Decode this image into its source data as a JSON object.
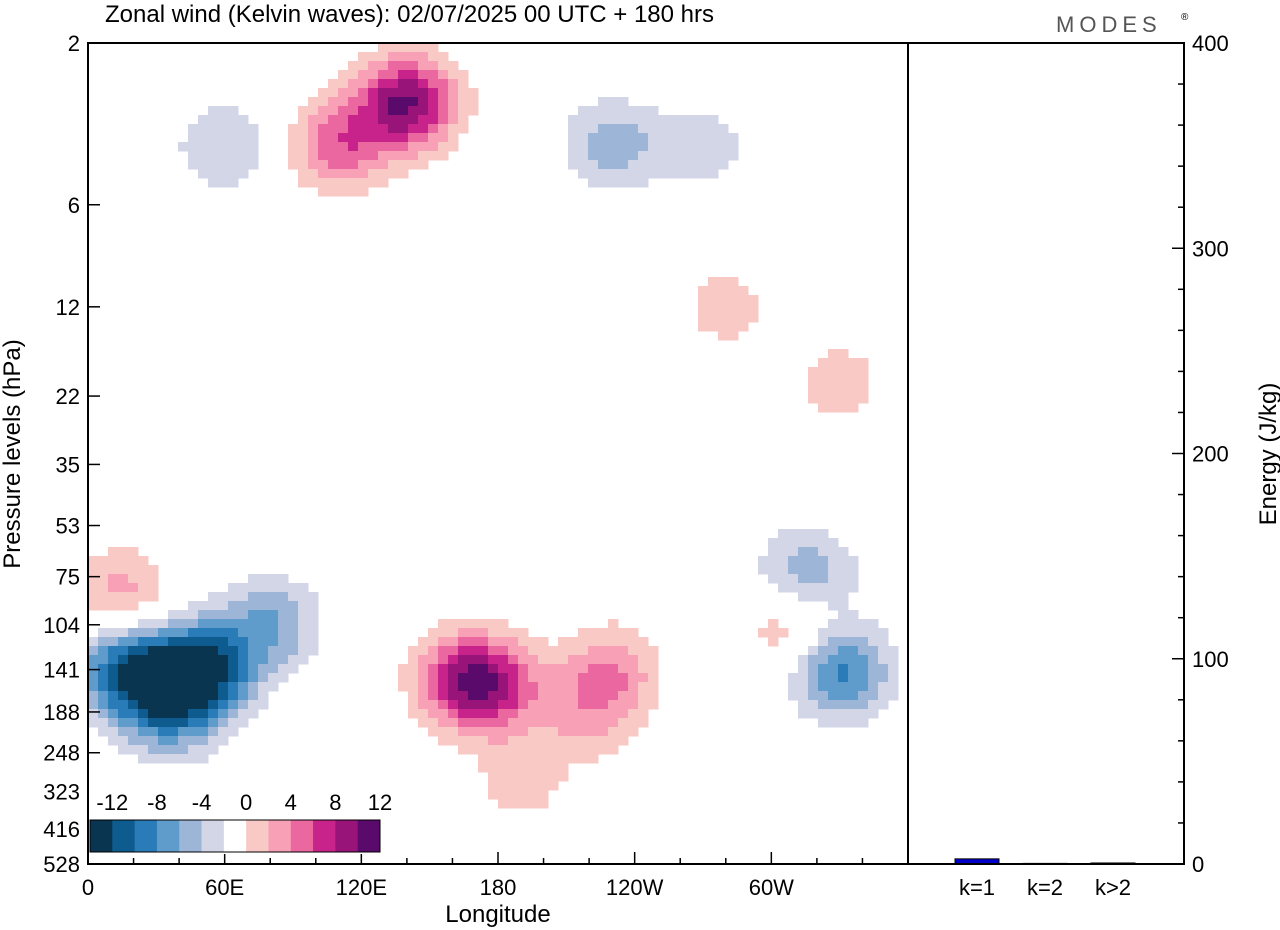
{
  "header": {
    "title": "Zonal wind (Kelvin waves):  02/07/2025  00 UTC  + 180 hrs",
    "logo": "MODES",
    "logo_mark": "®"
  },
  "colors": {
    "levels": [
      -12,
      -10,
      -8,
      -6,
      -4,
      -2,
      2,
      4,
      6,
      8,
      10,
      12
    ],
    "palette": [
      "#0a3550",
      "#0e5c8f",
      "#2a7cb8",
      "#5f9ccb",
      "#9db6d8",
      "#d3d6e7",
      "#ffffff",
      "#f9c9c6",
      "#f8a0b5",
      "#eb67a0",
      "#c8228b",
      "#981478",
      "#5a0a6a"
    ],
    "bar": "#0000cc"
  },
  "chart_data": [
    {
      "type": "heatmap",
      "title": "Zonal wind (Kelvin waves):  02/07/2025  00 UTC  + 180 hrs",
      "xlabel": "Longitude",
      "ylabel": "Pressure levels (hPa)",
      "x_ticks": [
        "0",
        "60E",
        "120E",
        "180",
        "120W",
        "60W"
      ],
      "x_range_deg": [
        0,
        360
      ],
      "y_ticks": [
        "2",
        "6",
        "12",
        "22",
        "35",
        "53",
        "75",
        "104",
        "141",
        "188",
        "248",
        "323",
        "416",
        "528"
      ],
      "y_scale": "log-pressure",
      "y_range_hPa": [
        2,
        528
      ],
      "colorbar": {
        "labels": [
          "-12",
          "-8",
          "-4",
          "0",
          "4",
          "8",
          "12"
        ]
      },
      "features": [
        {
          "lon": 18,
          "p": 141,
          "val": -11
        },
        {
          "lon": 50,
          "p": 141,
          "val": -13
        },
        {
          "lon": 35,
          "p": 188,
          "val": -7
        },
        {
          "lon": 80,
          "p": 104,
          "val": -6
        },
        {
          "lon": 330,
          "p": 141,
          "val": -9
        },
        {
          "lon": 315,
          "p": 75,
          "val": -6
        },
        {
          "lon": 165,
          "p": 150,
          "val": 9
        },
        {
          "lon": 180,
          "p": 160,
          "val": 6
        },
        {
          "lon": 230,
          "p": 141,
          "val": 5
        },
        {
          "lon": 190,
          "p": 300,
          "val": 3
        },
        {
          "lon": 310,
          "p": 104,
          "val": 5
        },
        {
          "lon": 15,
          "p": 85,
          "val": 5
        },
        {
          "lon": 140,
          "p": 3,
          "val": 12
        },
        {
          "lon": 110,
          "p": 4,
          "val": 7
        },
        {
          "lon": 60,
          "p": 4,
          "val": -4
        },
        {
          "lon": 230,
          "p": 4,
          "val": -5
        },
        {
          "lon": 270,
          "p": 4,
          "val": -3
        },
        {
          "lon": 280,
          "p": 12,
          "val": 3
        },
        {
          "lon": 330,
          "p": 20,
          "val": 3
        },
        {
          "lon": 100,
          "p": 30,
          "val": -2
        },
        {
          "lon": 220,
          "p": 190,
          "val": 4
        }
      ]
    },
    {
      "type": "bar",
      "ylabel": "Energy (J/kg)",
      "categories": [
        "k=1",
        "k=2",
        "k>2"
      ],
      "values": [
        2.5,
        0.3,
        0.5
      ],
      "ylim": [
        0,
        400
      ],
      "y_ticks": [
        "0",
        "100",
        "200",
        "300",
        "400"
      ]
    }
  ]
}
